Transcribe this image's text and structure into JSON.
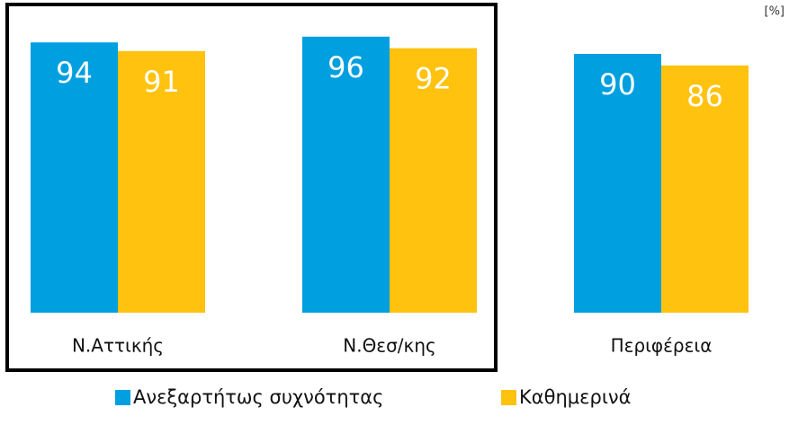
{
  "chart_data": {
    "type": "bar",
    "unit": "[%]",
    "categories": [
      "Ν.Αττικής",
      "Ν.Θεσ/κης",
      "Περιφέρεια"
    ],
    "series": [
      {
        "name": "Ανεξαρτήτως συχνότητας",
        "color": "#009fdf",
        "values": [
          94,
          96,
          90
        ]
      },
      {
        "name": "Καθημερινά",
        "color": "#ffc20e",
        "values": [
          91,
          92,
          86
        ]
      }
    ]
  }
}
